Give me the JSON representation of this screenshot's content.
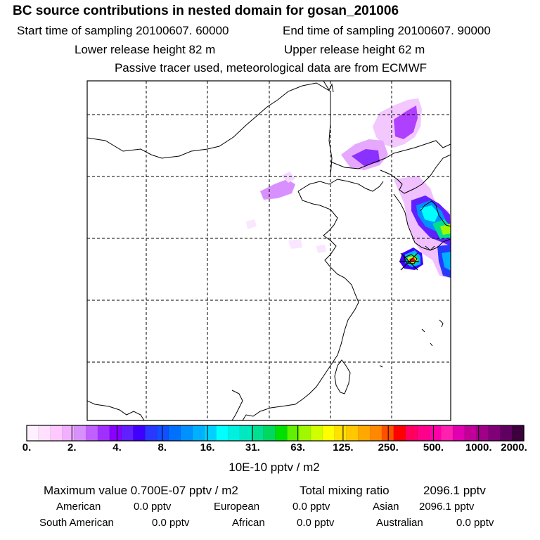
{
  "title": "BC  source contributions in nested domain for gosan_201006",
  "header": {
    "start_time": "Start time of sampling 20100607. 60000",
    "end_time": "End time of sampling 20100607. 90000",
    "lower_height": "Lower release height   82 m",
    "upper_height": "Upper release height   62 m",
    "note": "Passive tracer used, meteorological data are from ECMWF"
  },
  "colorbar": {
    "units": "10E-10 pptv / m2",
    "tick_labels": [
      "0.",
      "2.",
      "4.",
      "8.",
      "16.",
      "31.",
      "63.",
      "125.",
      "250.",
      "500.",
      "1000.",
      "2000."
    ],
    "colors": [
      "#fff0ff",
      "#ffe0ff",
      "#ffc8ff",
      "#f0b0ff",
      "#d890ff",
      "#c060ff",
      "#a030ff",
      "#8800ff",
      "#6020ff",
      "#4000ff",
      "#2838ff",
      "#1050ff",
      "#0070ff",
      "#0090ff",
      "#00b0ff",
      "#00d0ff",
      "#00ffff",
      "#00f0e0",
      "#00e8c0",
      "#00e090",
      "#00d860",
      "#00e000",
      "#60f000",
      "#a0f800",
      "#d0ff00",
      "#ffff00",
      "#ffe000",
      "#ffc800",
      "#ffa800",
      "#ff8800",
      "#ff5000",
      "#ff0000",
      "#ff0060",
      "#ff0088",
      "#ff00a8",
      "#ff20b0",
      "#e000b0",
      "#c00098",
      "#a00088",
      "#800078",
      "#600060",
      "#3c003c"
    ]
  },
  "chart_data": {
    "type": "heatmap",
    "title": "BC  source contributions in nested domain for gosan_201006",
    "colorbar_levels": [
      0,
      2,
      4,
      8,
      16,
      31,
      63,
      125,
      250,
      500,
      1000,
      2000
    ],
    "units": "10E-10 pptv / m2",
    "receptor": "gosan",
    "maximum_value": "0.700E-07",
    "total_mixing_ratio": 2096.1
  },
  "stats": {
    "max_line_label": "Maximum value  0.700E-07 pptv / m2",
    "total_label": "Total mixing ratio",
    "total_value": "2096.1 pptv",
    "regions": [
      {
        "name": "American",
        "value": "0.0 pptv"
      },
      {
        "name": "European",
        "value": "0.0 pptv"
      },
      {
        "name": "Asian",
        "value": "2096.1 pptv"
      },
      {
        "name": "South American",
        "value": "0.0 pptv"
      },
      {
        "name": "African",
        "value": "0.0 pptv"
      },
      {
        "name": "Australian",
        "value": "0.0 pptv"
      }
    ]
  }
}
